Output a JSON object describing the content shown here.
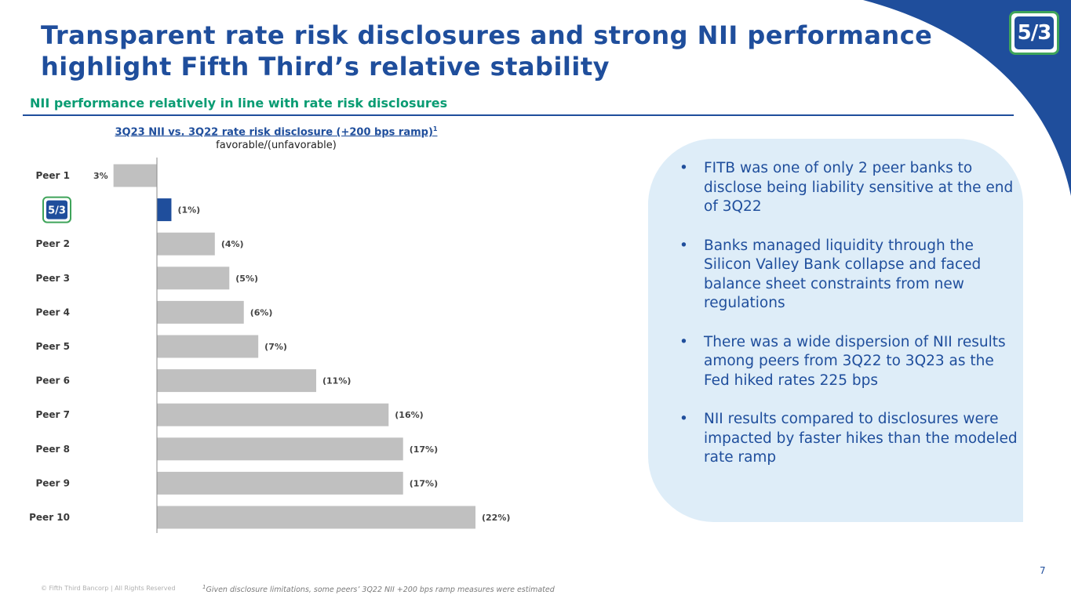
{
  "header": {
    "title_line1": "Transparent rate risk disclosures and strong NII performance",
    "title_line2": "highlight Fifth Third’s relative stability",
    "subtitle": "NII performance relatively in line with rate risk disclosures",
    "logo_text": "5/3"
  },
  "colors": {
    "brand_blue": "#1f4e9c",
    "accent_green": "#0a9c73",
    "bar_gray": "#c0c0c0",
    "highlight_bar": "#1f4e9c",
    "panel_bg": "#deedf8"
  },
  "chart_data": {
    "type": "bar",
    "orientation": "horizontal",
    "title": "3Q23 NII vs. 3Q22 rate risk disclosure (+200 bps ramp)",
    "title_superscript": "1",
    "subtitle": "favorable/(unfavorable)",
    "categories": [
      "Peer 1",
      "FITB",
      "Peer 2",
      "Peer 3",
      "Peer 4",
      "Peer 5",
      "Peer 6",
      "Peer 7",
      "Peer 8",
      "Peer 9",
      "Peer 10"
    ],
    "category_icons": [
      "",
      "fifth-third-logo-icon",
      "",
      "",
      "",
      "",
      "",
      "",
      "",
      "",
      ""
    ],
    "values": [
      3,
      -1,
      -4,
      -5,
      -6,
      -7,
      -11,
      -16,
      -17,
      -17,
      -22
    ],
    "labels": [
      "3%",
      "(1%)",
      "(4%)",
      "(5%)",
      "(6%)",
      "(7%)",
      "(11%)",
      "(16%)",
      "(17%)",
      "(17%)",
      "(22%)"
    ],
    "highlight_index": 1,
    "value_axis_range": [
      -22,
      3
    ],
    "grid": false,
    "legend": "none"
  },
  "bullets": [
    "FITB was one of only 2 peer banks to disclose being liability sensitive at the end of 3Q22",
    "Banks managed liquidity through the Silicon Valley Bank collapse and faced balance sheet constraints from new regulations",
    "There was a wide dispersion of NII results among peers from 3Q22 to 3Q23 as the Fed hiked rates 225 bps",
    "NII results compared to disclosures were impacted by faster hikes than the modeled rate ramp"
  ],
  "bullet_symbol": "•",
  "footer": {
    "copyright": "© Fifth Third Bancorp | All Rights Reserved",
    "footnote_marker": "1",
    "footnote": "Given disclosure limitations, some peers’ 3Q22 NII +200 bps ramp measures were estimated",
    "page_number": "7"
  }
}
